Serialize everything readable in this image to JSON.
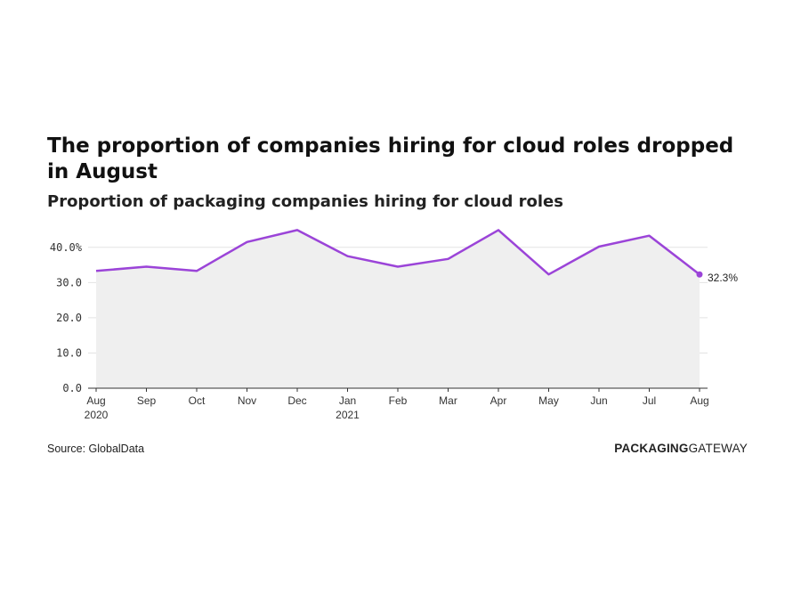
{
  "header": {
    "title": "The proportion of companies hiring for cloud roles dropped in August",
    "subtitle": "Proportion of packaging companies hiring for cloud roles"
  },
  "footer": {
    "source": "Source: GlobalData",
    "brand_bold": "PACKAGING",
    "brand_regular": "GATEWAY"
  },
  "colors": {
    "line": "#9b44d8",
    "area": "#efefef",
    "grid": "#e3e3e3",
    "axis": "#333333"
  },
  "chart_data": {
    "type": "area",
    "x": [
      "Aug",
      "Sep",
      "Oct",
      "Nov",
      "Dec",
      "Jan",
      "Feb",
      "Mar",
      "Apr",
      "May",
      "Jun",
      "Jul",
      "Aug"
    ],
    "x_sublabels": [
      "2020",
      "",
      "",
      "",
      "",
      "2021",
      "",
      "",
      "",
      "",
      "",
      "",
      ""
    ],
    "values": [
      33.3,
      34.5,
      33.3,
      41.5,
      44.9,
      37.5,
      34.5,
      36.7,
      44.9,
      32.3,
      40.2,
      43.3,
      32.3
    ],
    "ylim": [
      0,
      45
    ],
    "yticks": [
      0,
      10,
      20,
      30,
      40
    ],
    "ytick_labels": [
      "0.0",
      "10.0",
      "20.0",
      "30.0",
      "40.0%"
    ],
    "end_label": "32.3%",
    "grid": true,
    "xlabel": "",
    "ylabel": ""
  }
}
